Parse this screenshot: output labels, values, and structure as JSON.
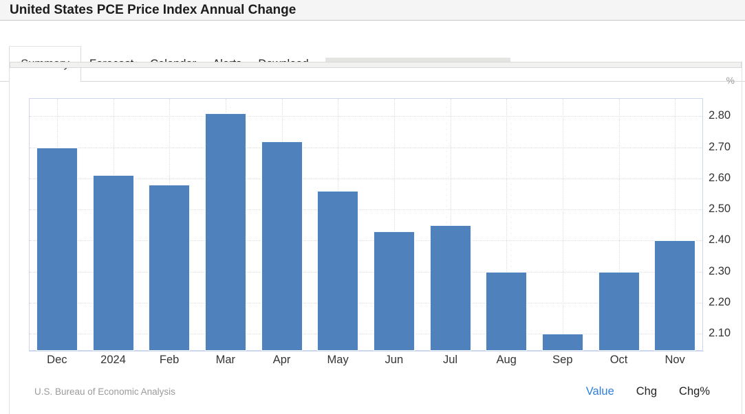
{
  "header": {
    "title": "United States PCE Price Index Annual Change"
  },
  "tabs": {
    "items": [
      {
        "label": "Summary",
        "active": true,
        "caret": false
      },
      {
        "label": "Forecast",
        "active": false,
        "caret": false
      },
      {
        "label": "Calendar",
        "active": false,
        "caret": false
      },
      {
        "label": "Alerts",
        "active": false,
        "caret": false
      },
      {
        "label": "Download",
        "active": false,
        "caret": true
      }
    ]
  },
  "chart_data": {
    "type": "bar",
    "title": "United States PCE Price Index Annual Change",
    "unit_label": "%",
    "categories": [
      "Dec",
      "2024",
      "Feb",
      "Mar",
      "Apr",
      "May",
      "Jun",
      "Jul",
      "Aug",
      "Sep",
      "Oct",
      "Nov"
    ],
    "values": [
      2.7,
      2.61,
      2.58,
      2.81,
      2.72,
      2.56,
      2.43,
      2.45,
      2.3,
      2.1,
      2.3,
      2.4
    ],
    "yticks": [
      2.1,
      2.2,
      2.3,
      2.4,
      2.5,
      2.6,
      2.7,
      2.8
    ],
    "ylim": [
      2.045,
      2.858
    ],
    "xlabel": "",
    "ylabel": "%",
    "grid": true,
    "gridline_style": "dotted",
    "legend_position": "none",
    "bar_color": "#4f81bd",
    "bar_border_color": "#ffffff"
  },
  "footer": {
    "source": "U.S. Bureau of Economic Analysis",
    "view_options": [
      "Value",
      "Chg",
      "Chg%"
    ],
    "active_option": "Value",
    "active_color": "#2f7ed8"
  }
}
